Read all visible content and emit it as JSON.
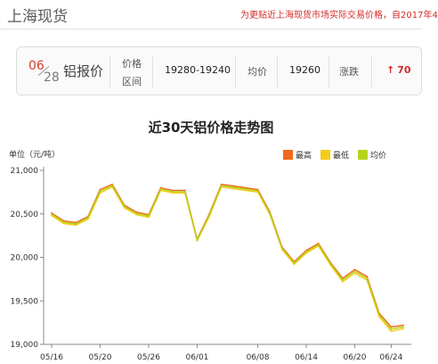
{
  "header": {
    "title": "上海现货",
    "note": "为更贴近上海现货市场实际交易价格，自2017年4"
  },
  "quote": {
    "month": "06",
    "day": "28",
    "name": "铝报价",
    "range_label_1": "价格",
    "range_label_2": "区间",
    "range": "19280-19240",
    "avg_label": "均价",
    "avg": "19260",
    "change_label": "涨跌",
    "change_arrow": "↑",
    "change": "70",
    "up_color": "#d42a2a"
  },
  "chart_data": {
    "type": "line",
    "title": "近30天铝价格走势图",
    "ylabel": "单位（元/吨）",
    "xlabel": "",
    "ylim": [
      19000,
      21000
    ],
    "yticks": [
      19000,
      19500,
      20000,
      20500,
      21000
    ],
    "ytick_labels": [
      "19,000",
      "19,500",
      "20,000",
      "20,500",
      "21,000"
    ],
    "x_tick_labels": [
      "05/16",
      "05/20",
      "05/26",
      "06/01",
      "06/08",
      "06/14",
      "06/20",
      "06/24"
    ],
    "x_tick_indices": [
      0,
      4,
      8,
      12,
      17,
      21,
      25,
      28
    ],
    "grid": false,
    "legend_position": "top-right",
    "series": [
      {
        "name": "最高",
        "color": "#ef6a1a",
        "values": [
          20510,
          20420,
          20400,
          20470,
          20780,
          20840,
          20600,
          20520,
          20490,
          20800,
          20770,
          20770,
          20210,
          20500,
          20840,
          20820,
          20800,
          20780,
          20520,
          20120,
          19950,
          20080,
          20160,
          19940,
          19760,
          19860,
          19780,
          19360,
          19200,
          19220
        ]
      },
      {
        "name": "最低",
        "color": "#f5cc18",
        "values": [
          20480,
          20390,
          20370,
          20440,
          20740,
          20810,
          20570,
          20490,
          20460,
          20770,
          20740,
          20740,
          20190,
          20470,
          20810,
          20790,
          20770,
          20750,
          20490,
          20090,
          19920,
          20050,
          20130,
          19910,
          19720,
          19820,
          19740,
          19320,
          19150,
          19180
        ]
      },
      {
        "name": "均价",
        "color": "#b7d31c",
        "values": [
          20495,
          20405,
          20385,
          20455,
          20760,
          20825,
          20585,
          20505,
          20475,
          20785,
          20755,
          20755,
          20200,
          20485,
          20825,
          20805,
          20785,
          20765,
          20505,
          20105,
          19935,
          20065,
          20145,
          19925,
          19740,
          19840,
          19760,
          19340,
          19175,
          19200
        ]
      }
    ]
  }
}
